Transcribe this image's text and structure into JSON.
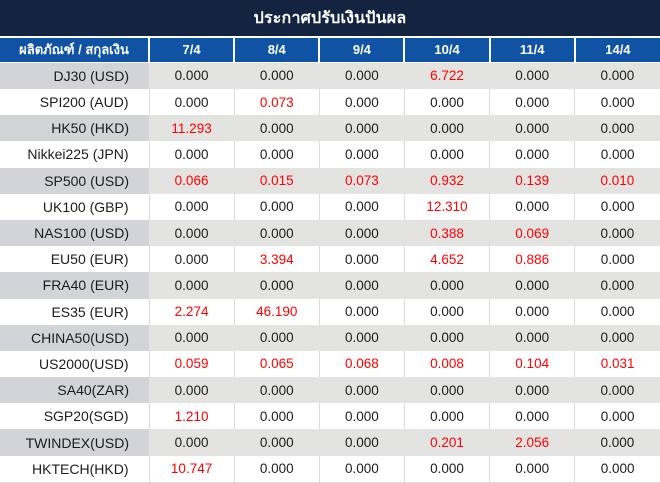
{
  "title": "ประกาศปรับเงินปันผล",
  "colors": {
    "title_bar_bg": "#14233f",
    "header_row_bg": "#1053a5",
    "gray_row_label_bg": "#d2d4d7",
    "gray_row_value_bg": "#e3e3e1",
    "value_text": "#1c1c1c",
    "highlight_red": "#fe0000"
  },
  "table": {
    "label_header": "ผลิตภัณฑ์ / สกุลเงิน",
    "date_headers": [
      "7/4",
      "8/4",
      "9/4",
      "10/4",
      "11/4",
      "14/4"
    ],
    "rows": [
      {
        "label": "DJ30 (USD)",
        "values": [
          "0.000",
          "0.000",
          "0.000",
          "6.722",
          "0.000",
          "0.000"
        ],
        "red": [
          3
        ]
      },
      {
        "label": "SPI200 (AUD)",
        "values": [
          "0.000",
          "0.073",
          "0.000",
          "0.000",
          "0.000",
          "0.000"
        ],
        "red": [
          1
        ]
      },
      {
        "label": "HK50 (HKD)",
        "values": [
          "11.293",
          "0.000",
          "0.000",
          "0.000",
          "0.000",
          "0.000"
        ],
        "red": [
          0
        ]
      },
      {
        "label": "Nikkei225 (JPN)",
        "values": [
          "0.000",
          "0.000",
          "0.000",
          "0.000",
          "0.000",
          "0.000"
        ],
        "red": []
      },
      {
        "label": "SP500 (USD)",
        "values": [
          "0.066",
          "0.015",
          "0.073",
          "0.932",
          "0.139",
          "0.010"
        ],
        "red": [
          0,
          1,
          2,
          3,
          4,
          5
        ]
      },
      {
        "label": "UK100 (GBP)",
        "values": [
          "0.000",
          "0.000",
          "0.000",
          "12.310",
          "0.000",
          "0.000"
        ],
        "red": [
          3
        ]
      },
      {
        "label": "NAS100 (USD)",
        "values": [
          "0.000",
          "0.000",
          "0.000",
          "0.388",
          "0.069",
          "0.000"
        ],
        "red": [
          3,
          4
        ]
      },
      {
        "label": "EU50 (EUR)",
        "values": [
          "0.000",
          "3.394",
          "0.000",
          "4.652",
          "0.886",
          "0.000"
        ],
        "red": [
          1,
          3,
          4
        ]
      },
      {
        "label": "FRA40 (EUR)",
        "values": [
          "0.000",
          "0.000",
          "0.000",
          "0.000",
          "0.000",
          "0.000"
        ],
        "red": []
      },
      {
        "label": "ES35 (EUR)",
        "values": [
          "2.274",
          "46.190",
          "0.000",
          "0.000",
          "0.000",
          "0.000"
        ],
        "red": [
          0,
          1
        ]
      },
      {
        "label": "CHINA50(USD)",
        "values": [
          "0.000",
          "0.000",
          "0.000",
          "0.000",
          "0.000",
          "0.000"
        ],
        "red": []
      },
      {
        "label": "US2000(USD)",
        "values": [
          "0.059",
          "0.065",
          "0.068",
          "0.008",
          "0.104",
          "0.031"
        ],
        "red": [
          0,
          1,
          2,
          3,
          4,
          5
        ]
      },
      {
        "label": "SA40(ZAR)",
        "values": [
          "0.000",
          "0.000",
          "0.000",
          "0.000",
          "0.000",
          "0.000"
        ],
        "red": []
      },
      {
        "label": "SGP20(SGD)",
        "values": [
          "1.210",
          "0.000",
          "0.000",
          "0.000",
          "0.000",
          "0.000"
        ],
        "red": [
          0
        ]
      },
      {
        "label": "TWINDEX(USD)",
        "values": [
          "0.000",
          "0.000",
          "0.000",
          "0.201",
          "2.056",
          "0.000"
        ],
        "red": [
          3,
          4
        ]
      },
      {
        "label": "HKTECH(HKD)",
        "values": [
          "10.747",
          "0.000",
          "0.000",
          "0.000",
          "0.000",
          "0.000"
        ],
        "red": [
          0
        ]
      }
    ]
  }
}
